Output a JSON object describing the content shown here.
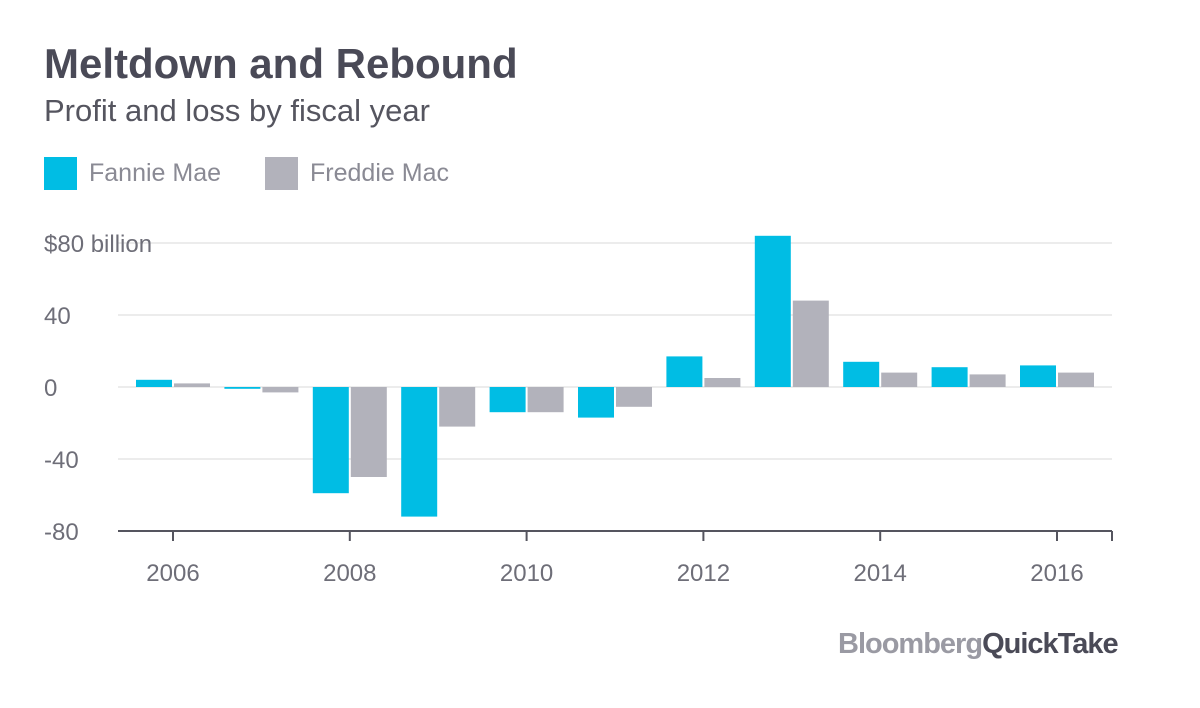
{
  "header": {
    "title": "Meltdown and Rebound",
    "subtitle": "Profit and loss by fiscal year"
  },
  "colors": {
    "fannie": "#00bde4",
    "freddie": "#b2b2bb",
    "grid": "#e6e6e6",
    "axis": "#55555f",
    "text": "#6e6e78"
  },
  "logo": {
    "part1": "Bloomberg",
    "part2": "QuickTake"
  },
  "chart_data": {
    "type": "bar",
    "title": "Meltdown and Rebound",
    "subtitle": "Profit and loss by fiscal year",
    "categories": [
      "2006",
      "2007",
      "2008",
      "2009",
      "2010",
      "2011",
      "2012",
      "2013",
      "2014",
      "2015",
      "2016"
    ],
    "x_tick_labels": [
      "2006",
      "2008",
      "2010",
      "2012",
      "2014",
      "2016"
    ],
    "series": [
      {
        "name": "Fannie Mae",
        "values": [
          4,
          -1,
          -59,
          -72,
          -14,
          -17,
          17,
          84,
          14,
          11,
          12
        ]
      },
      {
        "name": "Freddie Mac",
        "values": [
          2,
          -3,
          -50,
          -22,
          -14,
          -11,
          5,
          48,
          8,
          7,
          8
        ]
      }
    ],
    "ylim": [
      -80,
      80
    ],
    "y_ticks": [
      80,
      40,
      0,
      -40,
      -80
    ],
    "y_tick_labels": [
      "$80 billion",
      "40",
      "0",
      "-40",
      "-80"
    ],
    "xlabel": "",
    "ylabel": "",
    "grid": true,
    "legend": "top-left"
  }
}
